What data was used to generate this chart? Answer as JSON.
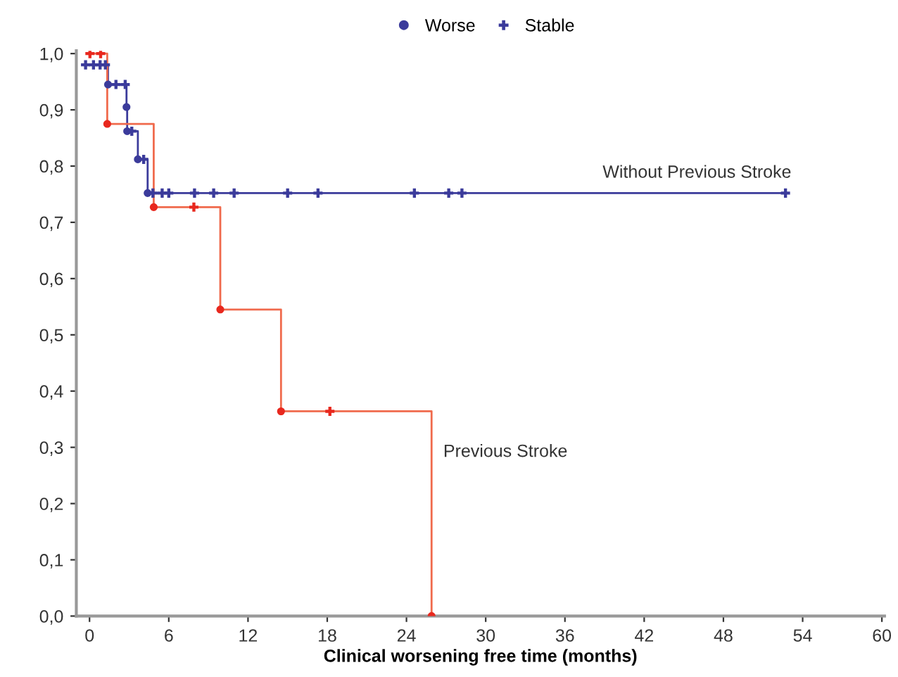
{
  "chart_data": {
    "type": "step",
    "xlabel": "Clinical worsening free time (months)",
    "xlim": [
      -1,
      60.2
    ],
    "ylim": [
      0,
      1.005
    ],
    "xticks": [
      0,
      6,
      12,
      18,
      24,
      30,
      36,
      42,
      48,
      54,
      60
    ],
    "yticks": [
      {
        "value": 0.0,
        "label": "0,0"
      },
      {
        "value": 0.1,
        "label": "0,1"
      },
      {
        "value": 0.2,
        "label": "0,2"
      },
      {
        "value": 0.3,
        "label": "0,3"
      },
      {
        "value": 0.4,
        "label": "0,4"
      },
      {
        "value": 0.5,
        "label": "0,5"
      },
      {
        "value": 0.6,
        "label": "0,6"
      },
      {
        "value": 0.7,
        "label": "0,7"
      },
      {
        "value": 0.8,
        "label": "0,8"
      },
      {
        "value": 0.9,
        "label": "0,9"
      },
      {
        "value": 1.0,
        "label": "1,0"
      }
    ],
    "grid": false,
    "legend": "top",
    "series": [
      {
        "name": "Without Previous Stroke",
        "color": "#3b3b9b",
        "x": [
          -0.3,
          1.4,
          2.8,
          2.85,
          3.66,
          4.4,
          52.7
        ],
        "values": [
          0.98,
          0.945,
          0.905,
          0.862,
          0.812,
          0.752,
          0.752
        ]
      },
      {
        "name": "Previous Stroke",
        "color": "#f06a4c",
        "x": [
          -0.15,
          1.34,
          4.86,
          9.9,
          14.5,
          25.9
        ],
        "values": [
          1.0,
          0.875,
          0.727,
          0.545,
          0.364,
          0.0
        ]
      },
      {
        "type": "scatter",
        "name": "Worse",
        "marker": "circle",
        "color": "#3b3b9b",
        "x": [
          1.4,
          2.8,
          2.85,
          3.66,
          4.4,
          1.34,
          4.86,
          9.9,
          14.5,
          25.9
        ],
        "values": [
          0.945,
          0.905,
          0.862,
          0.812,
          0.752,
          0.875,
          0.727,
          0.545,
          0.364,
          0.0
        ],
        "colors": [
          "#3b3b9b",
          "#3b3b9b",
          "#3b3b9b",
          "#3b3b9b",
          "#3b3b9b",
          "#e8281e",
          "#e8281e",
          "#e8281e",
          "#e8281e",
          "#e8281e"
        ]
      },
      {
        "type": "scatter",
        "name": "Stable",
        "marker": "cross",
        "color": "#3b3b9b",
        "x": [
          -0.3,
          0.3,
          0.8,
          1.2,
          2.0,
          2.7,
          3.2,
          4.1,
          4.8,
          5.5,
          6.0,
          7.95,
          9.4,
          10.95,
          15.0,
          17.3,
          24.6,
          27.2,
          28.2,
          52.7,
          0.03,
          0.84,
          7.9,
          18.2
        ],
        "values": [
          0.98,
          0.98,
          0.98,
          0.98,
          0.945,
          0.945,
          0.862,
          0.812,
          0.752,
          0.752,
          0.752,
          0.752,
          0.752,
          0.752,
          0.752,
          0.752,
          0.752,
          0.752,
          0.752,
          0.752,
          1.0,
          1.0,
          0.727,
          0.364
        ],
        "colors": [
          "#3b3b9b",
          "#3b3b9b",
          "#3b3b9b",
          "#3b3b9b",
          "#3b3b9b",
          "#3b3b9b",
          "#3b3b9b",
          "#3b3b9b",
          "#3b3b9b",
          "#3b3b9b",
          "#3b3b9b",
          "#3b3b9b",
          "#3b3b9b",
          "#3b3b9b",
          "#3b3b9b",
          "#3b3b9b",
          "#3b3b9b",
          "#3b3b9b",
          "#3b3b9b",
          "#3b3b9b",
          "#e8281e",
          "#e8281e",
          "#e8281e",
          "#e8281e"
        ]
      }
    ]
  }
}
